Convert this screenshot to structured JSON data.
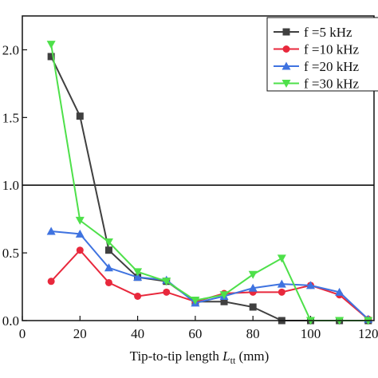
{
  "chart_data": {
    "type": "line",
    "xlabel_parts": [
      "Tip-to-tip length ",
      "L",
      "tt",
      " (mm)"
    ],
    "xlim": [
      0,
      122
    ],
    "xticks": [
      0,
      20,
      40,
      60,
      80,
      100,
      120
    ],
    "ylim": [
      0,
      2.25
    ],
    "yticks": [
      {
        "value": 0,
        "label": "0.0"
      },
      {
        "value": 0.5,
        "label": "0.5"
      },
      {
        "value": 1,
        "label": "1.0"
      },
      {
        "value": 1.5,
        "label": "1.5"
      },
      {
        "value": 2,
        "label": "2.0"
      }
    ],
    "hline": 1,
    "legend": "upper right",
    "x": [
      10,
      20,
      30,
      40,
      50,
      60,
      70,
      80,
      90,
      100,
      110,
      120
    ],
    "series": [
      {
        "name": "f =5 kHz",
        "color": "#404040",
        "marker": "square",
        "values": [
          1.95,
          1.51,
          0.52,
          0.32,
          0.29,
          0.14,
          0.14,
          0.1,
          0.0,
          0.0,
          0.0,
          0.0
        ]
      },
      {
        "name": "f =10 kHz",
        "color": "#e8283c",
        "marker": "circle",
        "values": [
          0.29,
          0.52,
          0.28,
          0.18,
          0.21,
          0.14,
          0.2,
          0.21,
          0.21,
          0.26,
          0.19,
          0.01
        ]
      },
      {
        "name": "f =20 kHz",
        "color": "#3f73e0",
        "marker": "triangle-up",
        "values": [
          0.66,
          0.64,
          0.39,
          0.32,
          0.3,
          0.13,
          0.18,
          0.24,
          0.27,
          0.26,
          0.21,
          0.01
        ]
      },
      {
        "name": "f =30 kHz",
        "color": "#4ee04a",
        "marker": "triangle-down",
        "values": [
          2.04,
          0.74,
          0.58,
          0.36,
          0.29,
          0.15,
          0.19,
          0.34,
          0.46,
          0.0,
          0.0,
          0.0
        ]
      }
    ]
  }
}
